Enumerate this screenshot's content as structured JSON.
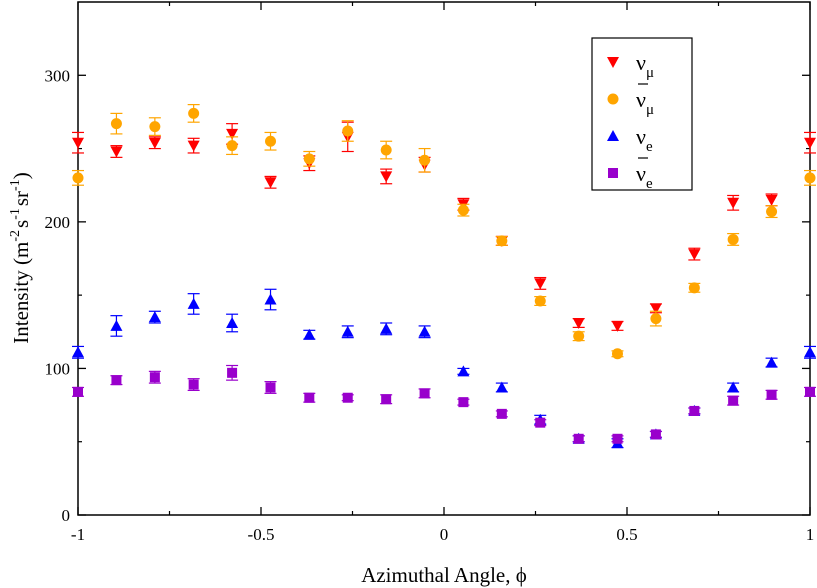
{
  "chart_data": {
    "type": "scatter",
    "title": "",
    "xlabel": "Azimuthal Angle, ϕ",
    "ylabel": {
      "main": "Intensity (m",
      "sup1": "-2",
      "mid1": "s",
      "sup2": "-1",
      "mid2": "sr",
      "sup3": "-1",
      "end": ")"
    },
    "xlim": [
      -1,
      1
    ],
    "ylim": [
      0,
      350
    ],
    "xticks": [
      {
        "value": -1,
        "label": "-1"
      },
      {
        "value": -0.5,
        "label": "-0.5"
      },
      {
        "value": 0,
        "label": "0"
      },
      {
        "value": 0.5,
        "label": "0.5"
      },
      {
        "value": 1,
        "label": "1"
      }
    ],
    "yticks": [
      {
        "value": 0,
        "label": "0"
      },
      {
        "value": 100,
        "label": "100"
      },
      {
        "value": 200,
        "label": "200"
      },
      {
        "value": 300,
        "label": "300"
      }
    ],
    "grid": false,
    "legend_position": "top-right",
    "x": [
      -1,
      -0.895,
      -0.79,
      -0.684,
      -0.579,
      -0.474,
      -0.368,
      -0.263,
      -0.158,
      -0.053,
      0.053,
      0.158,
      0.263,
      0.368,
      0.474,
      0.579,
      0.684,
      0.79,
      0.895,
      1
    ],
    "series": [
      {
        "name": "numu",
        "label_main": "ν",
        "label_sub": "μ",
        "bar": false,
        "color": "#ff0000",
        "marker": "triangle-down",
        "values": [
          254,
          248,
          254,
          252,
          260,
          227,
          240,
          258,
          231,
          239,
          212,
          187,
          158,
          131,
          129,
          141,
          178,
          213,
          215,
          254
        ],
        "errors": [
          7,
          4,
          4,
          5,
          7,
          4,
          5,
          10,
          5,
          5,
          4,
          3,
          4,
          3,
          3,
          3,
          4,
          5,
          4,
          7
        ]
      },
      {
        "name": "numubar",
        "label_main": "ν",
        "label_sub": "μ",
        "bar": true,
        "color": "#ffa500",
        "marker": "circle",
        "values": [
          230,
          267,
          265,
          274,
          252,
          255,
          243,
          262,
          249,
          242,
          208,
          187,
          146,
          122,
          110,
          134,
          155,
          188,
          207,
          230
        ],
        "errors": [
          5,
          7,
          6,
          6,
          6,
          6,
          5,
          7,
          6,
          8,
          4,
          3,
          3,
          3,
          2,
          5,
          3,
          4,
          4,
          5
        ]
      },
      {
        "name": "nue",
        "label_main": "ν",
        "label_sub": "e",
        "bar": false,
        "color": "#0000ff",
        "marker": "triangle-up",
        "values": [
          111,
          129,
          135,
          144,
          131,
          147,
          123,
          125,
          127,
          125,
          98,
          87,
          65,
          52,
          49,
          55,
          71,
          87,
          104,
          111
        ],
        "errors": [
          4,
          7,
          4,
          7,
          6,
          7,
          3,
          4,
          4,
          4,
          2,
          3,
          3,
          2,
          3,
          2,
          2,
          3,
          3,
          4
        ]
      },
      {
        "name": "nuebar",
        "label_main": "ν",
        "label_sub": "e",
        "bar": true,
        "color": "#9900cc",
        "marker": "square",
        "values": [
          84,
          92,
          94,
          89,
          97,
          87,
          80,
          80,
          79,
          83,
          77,
          69,
          63,
          52,
          52,
          55,
          71,
          78,
          82,
          84
        ],
        "errors": [
          3,
          3,
          4,
          4,
          5,
          4,
          3,
          2,
          3,
          3,
          2,
          2,
          2,
          2,
          2,
          2,
          2,
          3,
          3,
          3
        ]
      }
    ]
  }
}
